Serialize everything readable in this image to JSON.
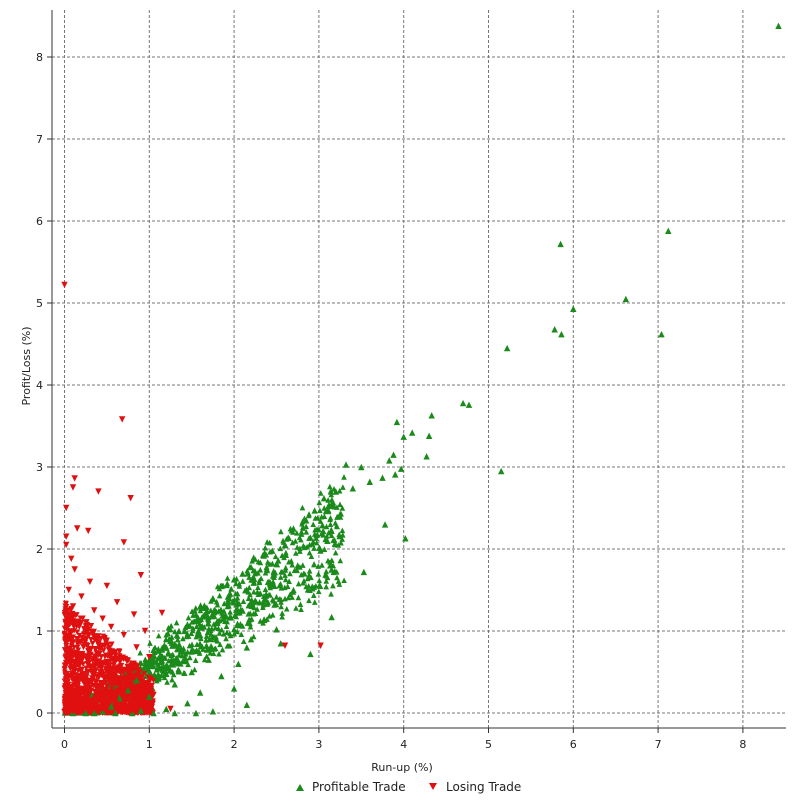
{
  "chart_data": {
    "type": "scatter",
    "title": "",
    "xlabel": "Run-up (%)",
    "ylabel": "Profit/Loss (%)",
    "xlim": [
      -0.15,
      8.6
    ],
    "ylim": [
      -0.1,
      8.6
    ],
    "x_ticks": [
      "0",
      "1",
      "2",
      "3",
      "4",
      "5",
      "6",
      "7",
      "8"
    ],
    "y_ticks": [
      "0",
      "1",
      "2",
      "3",
      "4",
      "5",
      "6",
      "7",
      "8"
    ],
    "grid": true,
    "legend_position": "bottom",
    "series": [
      {
        "name": "Profitable Trade",
        "marker": "triangle-up",
        "color": "#1a8a1a",
        "points": [
          [
            8.42,
            8.38
          ],
          [
            7.12,
            5.88
          ],
          [
            5.85,
            5.72
          ],
          [
            6.62,
            5.05
          ],
          [
            6.0,
            4.93
          ],
          [
            5.78,
            4.68
          ],
          [
            5.86,
            4.62
          ],
          [
            7.04,
            4.62
          ],
          [
            5.22,
            4.45
          ],
          [
            4.7,
            3.78
          ],
          [
            4.77,
            3.76
          ],
          [
            4.33,
            3.63
          ],
          [
            3.92,
            3.55
          ],
          [
            4.1,
            3.42
          ],
          [
            4.3,
            3.38
          ],
          [
            4.0,
            3.37
          ],
          [
            4.27,
            3.13
          ],
          [
            3.88,
            3.15
          ],
          [
            3.83,
            3.08
          ],
          [
            3.32,
            3.03
          ],
          [
            3.5,
            3.0
          ],
          [
            3.97,
            2.98
          ],
          [
            5.15,
            2.95
          ],
          [
            3.9,
            2.91
          ],
          [
            3.75,
            2.87
          ],
          [
            3.6,
            2.82
          ],
          [
            3.4,
            2.74
          ],
          [
            3.2,
            2.7
          ],
          [
            3.06,
            2.62
          ],
          [
            3.15,
            2.55
          ],
          [
            2.95,
            2.47
          ],
          [
            2.85,
            2.35
          ],
          [
            3.78,
            2.3
          ],
          [
            2.7,
            2.25
          ],
          [
            3.05,
            2.22
          ],
          [
            2.9,
            2.14
          ],
          [
            4.02,
            2.13
          ],
          [
            3.1,
            2.1
          ],
          [
            2.6,
            2.05
          ],
          [
            2.45,
            1.98
          ],
          [
            2.35,
            1.92
          ],
          [
            2.52,
            1.86
          ],
          [
            2.75,
            1.8
          ],
          [
            2.2,
            1.78
          ],
          [
            3.15,
            1.75
          ],
          [
            3.53,
            1.72
          ],
          [
            2.1,
            1.7
          ],
          [
            2.0,
            1.63
          ],
          [
            2.4,
            1.6
          ],
          [
            1.85,
            1.55
          ],
          [
            2.7,
            1.5
          ],
          [
            1.95,
            1.46
          ],
          [
            1.75,
            1.4
          ],
          [
            2.3,
            1.35
          ],
          [
            1.65,
            1.3
          ],
          [
            2.1,
            1.25
          ],
          [
            1.55,
            1.2
          ],
          [
            3.15,
            1.17
          ],
          [
            1.8,
            1.12
          ],
          [
            1.45,
            1.08
          ],
          [
            2.5,
            1.02
          ],
          [
            1.35,
            1.0
          ],
          [
            1.6,
            0.95
          ],
          [
            2.2,
            0.9
          ],
          [
            1.25,
            0.88
          ],
          [
            2.55,
            0.85
          ],
          [
            2.15,
            0.8
          ],
          [
            1.15,
            0.78
          ],
          [
            1.4,
            0.75
          ],
          [
            2.9,
            0.72
          ],
          [
            1.05,
            0.7
          ],
          [
            1.7,
            0.65
          ],
          [
            2.05,
            0.6
          ],
          [
            1.2,
            0.58
          ],
          [
            0.95,
            0.55
          ],
          [
            1.5,
            0.5
          ],
          [
            1.85,
            0.45
          ],
          [
            1.1,
            0.42
          ],
          [
            0.85,
            0.4
          ],
          [
            1.3,
            0.35
          ],
          [
            2.0,
            0.3
          ],
          [
            0.75,
            0.28
          ],
          [
            1.6,
            0.25
          ],
          [
            1.0,
            0.2
          ],
          [
            0.65,
            0.18
          ],
          [
            1.45,
            0.12
          ],
          [
            2.15,
            0.1
          ],
          [
            0.55,
            0.08
          ],
          [
            1.2,
            0.05
          ],
          [
            0.9,
            0.03
          ],
          [
            0.45,
            0.02
          ],
          [
            1.75,
            0.02
          ],
          [
            0.35,
            0.0
          ],
          [
            0.1,
            0.0
          ],
          [
            0.25,
            0.0
          ],
          [
            0.6,
            0.0
          ],
          [
            0.8,
            0.0
          ],
          [
            1.05,
            0.0
          ],
          [
            1.3,
            0.0
          ],
          [
            1.55,
            0.0
          ]
        ]
      },
      {
        "name": "Losing Trade",
        "marker": "triangle-down",
        "color": "#e01010",
        "points": [
          [
            0.0,
            5.22
          ],
          [
            0.68,
            3.58
          ],
          [
            0.12,
            2.86
          ],
          [
            0.1,
            2.75
          ],
          [
            0.4,
            2.7
          ],
          [
            0.78,
            2.62
          ],
          [
            0.02,
            2.5
          ],
          [
            0.15,
            2.25
          ],
          [
            0.28,
            2.22
          ],
          [
            0.02,
            2.15
          ],
          [
            0.7,
            2.08
          ],
          [
            0.02,
            2.05
          ],
          [
            0.08,
            1.88
          ],
          [
            0.12,
            1.75
          ],
          [
            0.9,
            1.68
          ],
          [
            0.3,
            1.6
          ],
          [
            0.5,
            1.55
          ],
          [
            0.05,
            1.5
          ],
          [
            0.2,
            1.42
          ],
          [
            0.62,
            1.35
          ],
          [
            0.1,
            1.3
          ],
          [
            0.35,
            1.25
          ],
          [
            0.82,
            1.2
          ],
          [
            1.15,
            1.22
          ],
          [
            0.45,
            1.15
          ],
          [
            0.05,
            1.1
          ],
          [
            0.55,
            1.05
          ],
          [
            0.95,
            1.0
          ],
          [
            0.25,
            0.98
          ],
          [
            0.7,
            0.95
          ],
          [
            0.15,
            0.9
          ],
          [
            0.4,
            0.85
          ],
          [
            2.6,
            0.82
          ],
          [
            3.02,
            0.82
          ],
          [
            0.85,
            0.8
          ],
          [
            0.05,
            0.78
          ],
          [
            0.3,
            0.75
          ],
          [
            0.6,
            0.7
          ],
          [
            1.0,
            0.68
          ],
          [
            0.2,
            0.65
          ],
          [
            0.5,
            0.6
          ],
          [
            0.1,
            0.55
          ],
          [
            0.75,
            0.52
          ],
          [
            0.35,
            0.5
          ],
          [
            0.02,
            0.45
          ],
          [
            0.9,
            0.42
          ],
          [
            0.25,
            0.4
          ],
          [
            0.55,
            0.35
          ],
          [
            0.15,
            0.3
          ],
          [
            0.7,
            0.28
          ],
          [
            0.4,
            0.25
          ],
          [
            1.05,
            0.22
          ],
          [
            0.05,
            0.2
          ],
          [
            0.3,
            0.15
          ],
          [
            0.6,
            0.12
          ],
          [
            0.2,
            0.08
          ],
          [
            1.25,
            0.05
          ],
          [
            0.45,
            0.05
          ],
          [
            0.8,
            0.03
          ],
          [
            0.1,
            0.02
          ],
          [
            0.0,
            0.01
          ]
        ]
      }
    ]
  }
}
